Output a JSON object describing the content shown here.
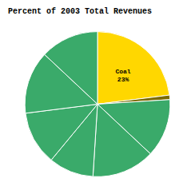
{
  "chart_data": {
    "type": "pie",
    "title": "Percent of 2003 Total Revenues",
    "values": [
      23,
      1,
      13,
      14,
      10,
      12,
      14,
      13
    ],
    "colors": [
      "#FFD700",
      "#7A6A00",
      "#3AAA6A",
      "#3AAA6A",
      "#3AAA6A",
      "#3AAA6A",
      "#3AAA6A",
      "#3AAA6A"
    ],
    "value_labels": [
      "Coal\n23%",
      null,
      null,
      null,
      null,
      null,
      null,
      null
    ],
    "data_labels": true
  }
}
